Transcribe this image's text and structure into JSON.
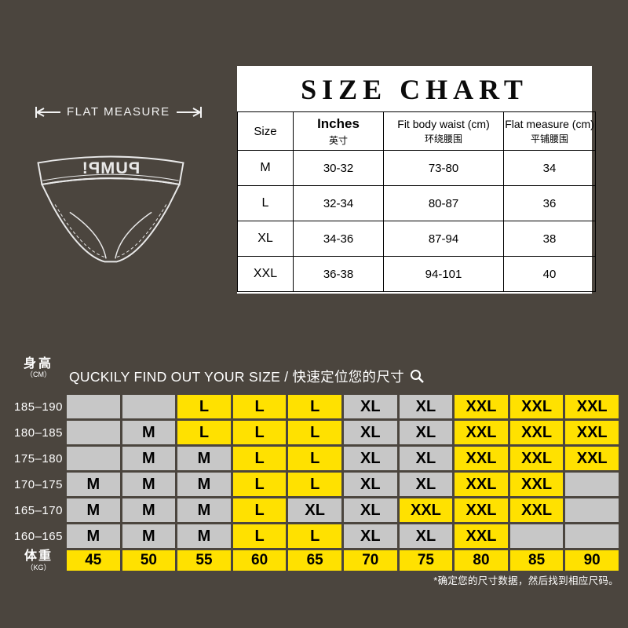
{
  "page": {
    "bg_color": "#4b453e",
    "accent_yellow": "#ffe100",
    "cell_gray": "#c7c7c7"
  },
  "flat_measure": {
    "label": "FLAT MEASURE"
  },
  "brand": {
    "logo_text": "PUMP!"
  },
  "size_chart": {
    "title": "SIZE CHART",
    "columns": [
      {
        "en": "Size",
        "zh": ""
      },
      {
        "en": "Inches",
        "zh": "英寸"
      },
      {
        "en": "Fit body waist (cm)",
        "zh": "环绕腰围"
      },
      {
        "en": "Flat measure (cm)",
        "zh": "平铺腰围"
      }
    ],
    "rows": [
      {
        "size": "M",
        "inches": "30-32",
        "fit": "73-80",
        "flat": "34"
      },
      {
        "size": "L",
        "inches": "32-34",
        "fit": "80-87",
        "flat": "36"
      },
      {
        "size": "XL",
        "inches": "34-36",
        "fit": "87-94",
        "flat": "38"
      },
      {
        "size": "XXL",
        "inches": "36-38",
        "fit": "94-101",
        "flat": "40"
      }
    ]
  },
  "finder": {
    "height_label": "身高",
    "height_unit": "（CM）",
    "weight_label": "体重",
    "weight_unit": "（KG）",
    "title": "QUCKILY FIND OUT YOUR SIZE / 快速定位您的尺寸",
    "search_icon": "magnifier-icon",
    "rows": [
      {
        "height": "185–190",
        "cells": [
          "",
          "",
          "L",
          "L",
          "L",
          "XL",
          "XL",
          "XXL",
          "XXL",
          "XXL"
        ]
      },
      {
        "height": "180–185",
        "cells": [
          "",
          "M",
          "L",
          "L",
          "L",
          "XL",
          "XL",
          "XXL",
          "XXL",
          "XXL"
        ]
      },
      {
        "height": "175–180",
        "cells": [
          "",
          "M",
          "M",
          "L",
          "L",
          "XL",
          "XL",
          "XXL",
          "XXL",
          "XXL"
        ]
      },
      {
        "height": "170–175",
        "cells": [
          "M",
          "M",
          "M",
          "L",
          "L",
          "XL",
          "XL",
          "XXL",
          "XXL",
          ""
        ]
      },
      {
        "height": "165–170",
        "cells": [
          "M",
          "M",
          "M",
          "L",
          "XL",
          "XL",
          "XXL",
          "XXL",
          "XXL",
          ""
        ]
      },
      {
        "height": "160–165",
        "cells": [
          "M",
          "M",
          "M",
          "L",
          "L",
          "XL",
          "XL",
          "XXL",
          "",
          ""
        ]
      }
    ],
    "weights": [
      "45",
      "50",
      "55",
      "60",
      "65",
      "70",
      "75",
      "80",
      "85",
      "90"
    ],
    "footnote": "*确定您的尺寸数据，然后找到相应尺码。"
  },
  "chart_data": [
    {
      "type": "table",
      "title": "SIZE CHART",
      "columns": [
        "Size",
        "Inches 英寸",
        "Fit body waist (cm) 环绕腰围",
        "Flat measure (cm) 平铺腰围"
      ],
      "rows": [
        [
          "M",
          "30-32",
          "73-80",
          "34"
        ],
        [
          "L",
          "32-34",
          "80-87",
          "36"
        ],
        [
          "XL",
          "34-36",
          "87-94",
          "38"
        ],
        [
          "XXL",
          "36-38",
          "94-101",
          "40"
        ]
      ]
    },
    {
      "type": "heatmap",
      "title": "QUCKILY FIND OUT YOUR SIZE / 快速定位您的尺寸",
      "xlabel": "体重 (KG)",
      "ylabel": "身高 (CM)",
      "x": [
        45,
        50,
        55,
        60,
        65,
        70,
        75,
        80,
        85,
        90
      ],
      "y": [
        "185-190",
        "180-185",
        "175-180",
        "170-175",
        "165-170",
        "160-165"
      ],
      "values": [
        [
          "",
          "",
          "L",
          "L",
          "L",
          "XL",
          "XL",
          "XXL",
          "XXL",
          "XXL"
        ],
        [
          "",
          "M",
          "L",
          "L",
          "L",
          "XL",
          "XL",
          "XXL",
          "XXL",
          "XXL"
        ],
        [
          "",
          "M",
          "M",
          "L",
          "L",
          "XL",
          "XL",
          "XXL",
          "XXL",
          "XXL"
        ],
        [
          "M",
          "M",
          "M",
          "L",
          "L",
          "XL",
          "XL",
          "XXL",
          "XXL",
          ""
        ],
        [
          "M",
          "M",
          "M",
          "L",
          "XL",
          "XL",
          "XXL",
          "XXL",
          "XXL",
          ""
        ],
        [
          "M",
          "M",
          "M",
          "L",
          "L",
          "XL",
          "XL",
          "XXL",
          "",
          ""
        ]
      ],
      "legend_note": "gray = M / XL / no size, yellow = L / XXL",
      "annotation": "*确定您的尺寸数据，然后找到相应尺码。"
    }
  ]
}
